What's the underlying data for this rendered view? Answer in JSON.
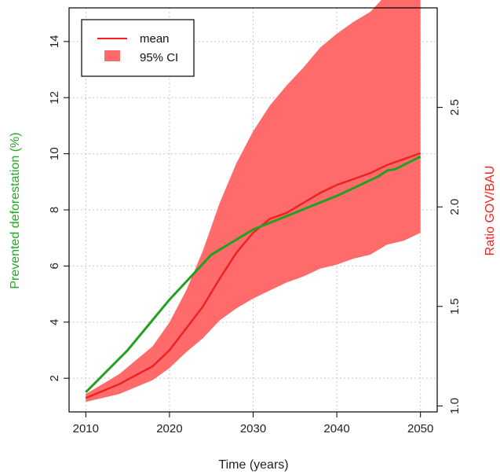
{
  "chart_data": {
    "type": "line",
    "xlabel": "Time (years)",
    "ylabel_left": "Prevented deforestation (%)",
    "ylabel_right": "Ratio GOV/BAU",
    "xlim": [
      2008,
      2052
    ],
    "ylim_left": [
      0.8,
      15.2
    ],
    "ylim_right": [
      0.97,
      3.0
    ],
    "x_ticks": [
      "2010",
      "2020",
      "2030",
      "2040",
      "2050"
    ],
    "y_left_ticks": [
      "2",
      "4",
      "6",
      "8",
      "10",
      "12",
      "14"
    ],
    "y_right_ticks": [
      "1.0",
      "1.5",
      "2.0",
      "2.5"
    ],
    "grid": true,
    "legend_position": "top-left",
    "colors": {
      "prevented": "#22a022",
      "mean": "#ee2222",
      "ci": "#ff6b6b",
      "left_label": "#22aa22",
      "right_label": "#ee2222",
      "grid": "#c8c8c8"
    },
    "series": [
      {
        "name": "",
        "axis": "left",
        "x": [
          2010,
          2015,
          2020,
          2025,
          2030,
          2035,
          2040,
          2045,
          2046,
          2047,
          2050
        ],
        "values": [
          1.5,
          3.0,
          4.8,
          6.4,
          7.3,
          7.9,
          8.5,
          9.2,
          9.4,
          9.45,
          9.9
        ]
      },
      {
        "name": "mean",
        "axis": "right",
        "x": [
          2010,
          2014,
          2018,
          2020,
          2022,
          2024,
          2026,
          2028,
          2030,
          2032,
          2034,
          2036,
          2038,
          2040,
          2042,
          2044,
          2046,
          2048,
          2050
        ],
        "values": [
          1.04,
          1.11,
          1.2,
          1.28,
          1.39,
          1.5,
          1.64,
          1.77,
          1.87,
          1.94,
          1.97,
          2.02,
          2.07,
          2.11,
          2.14,
          2.17,
          2.21,
          2.24,
          2.27
        ]
      },
      {
        "name": "95% CI",
        "axis": "right",
        "type": "area",
        "x": [
          2010,
          2014,
          2018,
          2020,
          2022,
          2024,
          2026,
          2028,
          2030,
          2032,
          2034,
          2036,
          2038,
          2040,
          2042,
          2044,
          2046,
          2048,
          2050
        ],
        "lower": [
          1.02,
          1.06,
          1.13,
          1.19,
          1.27,
          1.34,
          1.43,
          1.49,
          1.54,
          1.58,
          1.62,
          1.65,
          1.69,
          1.71,
          1.74,
          1.76,
          1.81,
          1.83,
          1.87
        ],
        "upper": [
          1.06,
          1.16,
          1.3,
          1.42,
          1.58,
          1.78,
          2.02,
          2.22,
          2.38,
          2.51,
          2.61,
          2.7,
          2.8,
          2.87,
          2.93,
          2.98,
          3.07,
          3.15,
          3.22
        ]
      }
    ]
  }
}
